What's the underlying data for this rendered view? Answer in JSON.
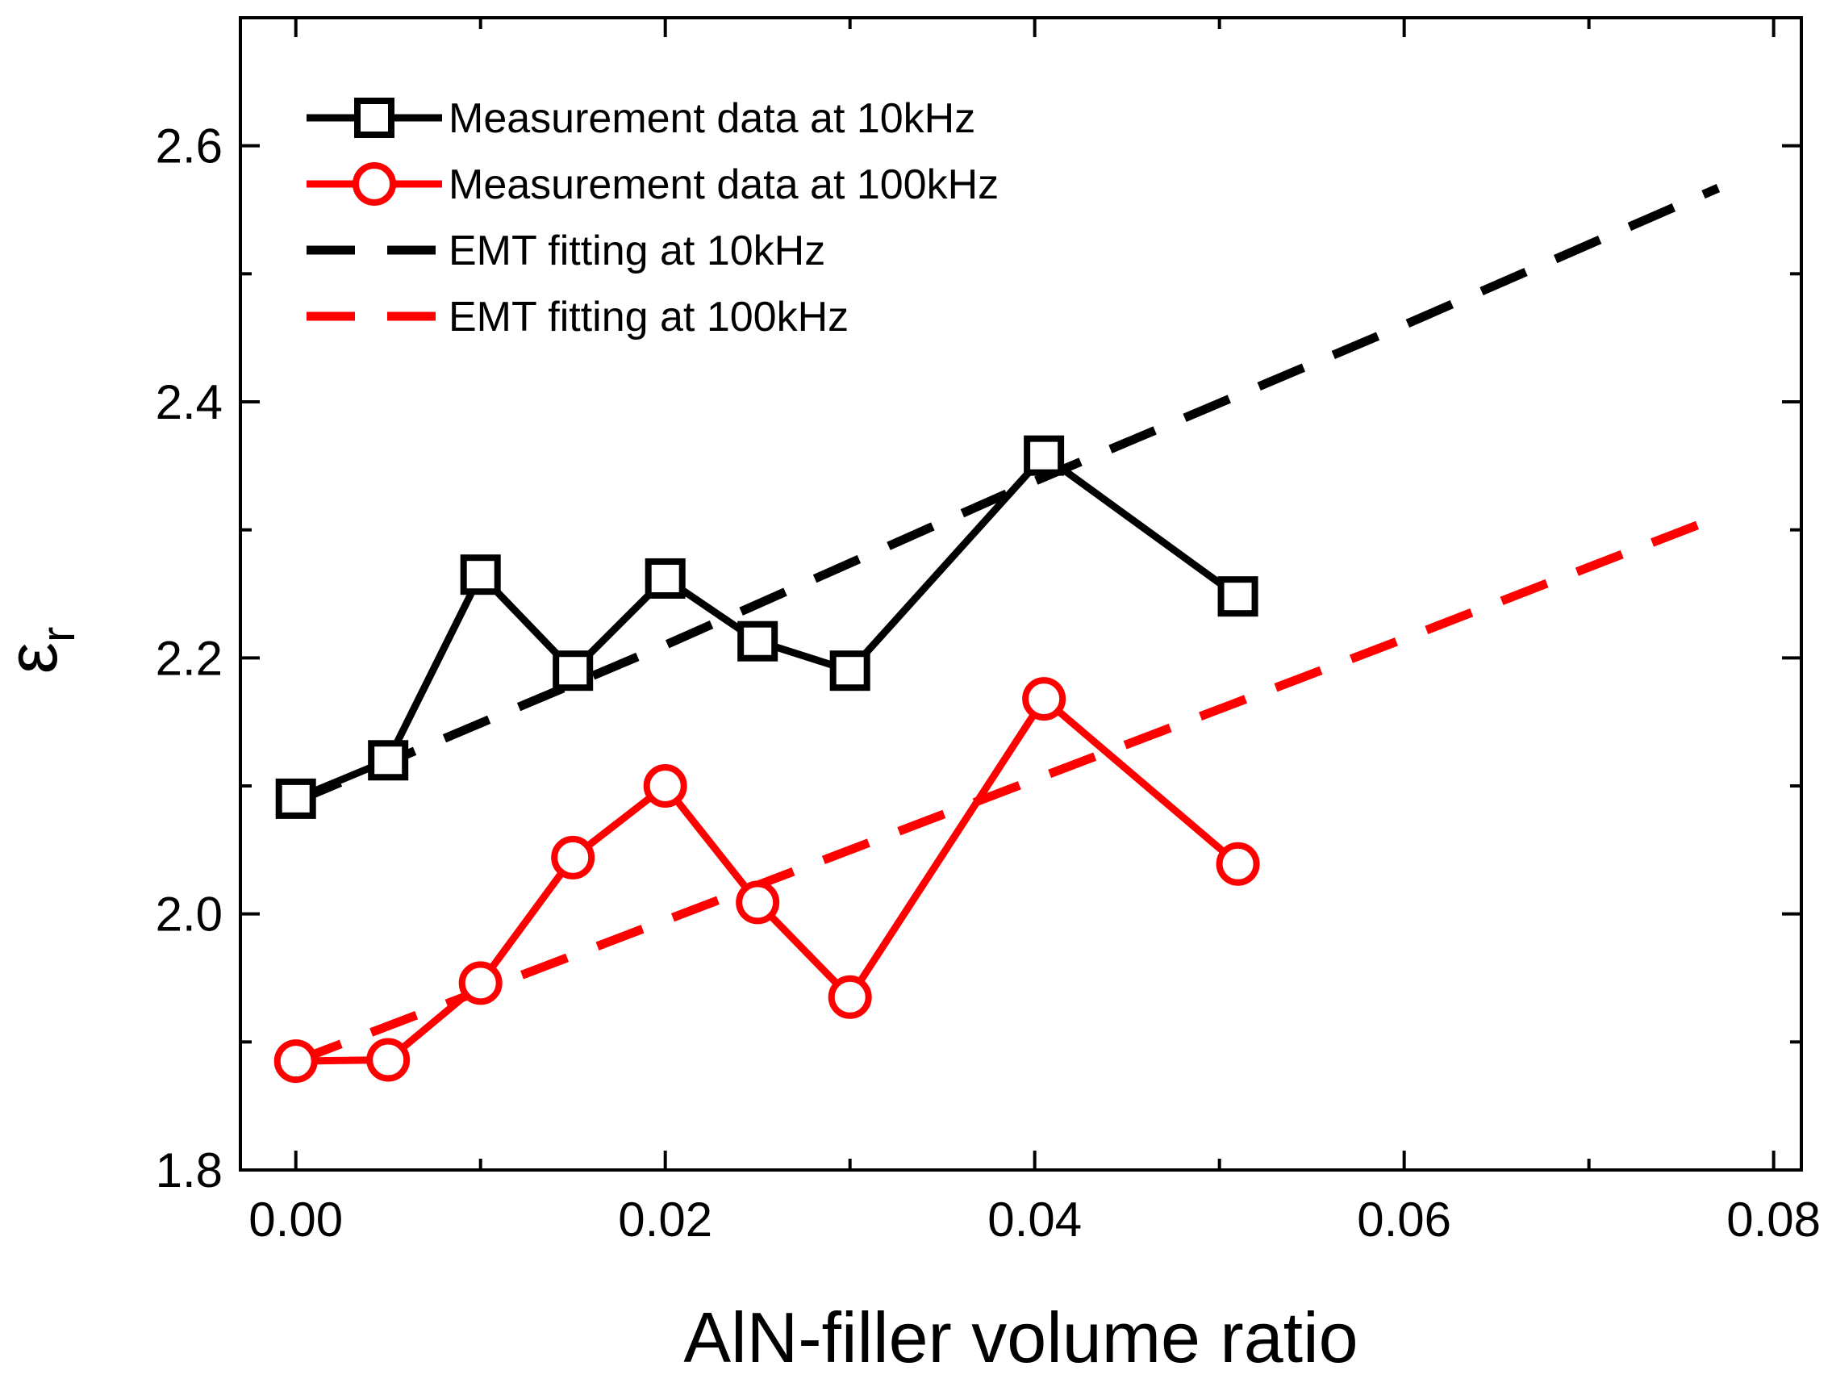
{
  "chart_data": {
    "type": "line",
    "xlabel": "AlN-filler volume ratio",
    "ylabel": "ε",
    "ylabel_subscript": "r",
    "xlim": [
      -0.003,
      0.0815
    ],
    "ylim": [
      1.8,
      2.7
    ],
    "xticks": [
      0.0,
      0.02,
      0.04,
      0.06,
      0.08
    ],
    "xtick_labels": [
      "0.00",
      "0.02",
      "0.04",
      "0.06",
      "0.08"
    ],
    "yticks": [
      1.8,
      2.0,
      2.2,
      2.4,
      2.6
    ],
    "ytick_labels": [
      "1.8",
      "2.0",
      "2.2",
      "2.4",
      "2.6"
    ],
    "grid": false,
    "legend_position": "top-left",
    "series": [
      {
        "name": "Measurement data at 10kHz",
        "color": "#000000",
        "style": "solid",
        "marker": "square",
        "x": [
          0.0,
          0.005,
          0.01,
          0.015,
          0.02,
          0.025,
          0.03,
          0.0405,
          0.051
        ],
        "y": [
          2.09,
          2.12,
          2.265,
          2.19,
          2.262,
          2.213,
          2.19,
          2.358,
          2.248
        ]
      },
      {
        "name": "Measurement data at 100kHz",
        "color": "#ff0000",
        "style": "solid",
        "marker": "circle",
        "x": [
          0.0,
          0.005,
          0.01,
          0.015,
          0.02,
          0.025,
          0.03,
          0.0405,
          0.051
        ],
        "y": [
          1.885,
          1.886,
          1.946,
          2.044,
          2.1,
          2.009,
          1.935,
          2.168,
          2.039
        ]
      },
      {
        "name": "EMT fitting at 10kHz",
        "color": "#000000",
        "style": "dashed",
        "marker": "none",
        "x": [
          0.0,
          0.02,
          0.04,
          0.06,
          0.077
        ],
        "y": [
          2.088,
          2.21,
          2.338,
          2.46,
          2.567
        ]
      },
      {
        "name": "EMT fitting at 100kHz",
        "color": "#ff0000",
        "style": "dashed",
        "marker": "none",
        "x": [
          0.0,
          0.02,
          0.04,
          0.06,
          0.077
        ],
        "y": [
          1.885,
          1.995,
          2.105,
          2.215,
          2.31
        ]
      }
    ]
  }
}
